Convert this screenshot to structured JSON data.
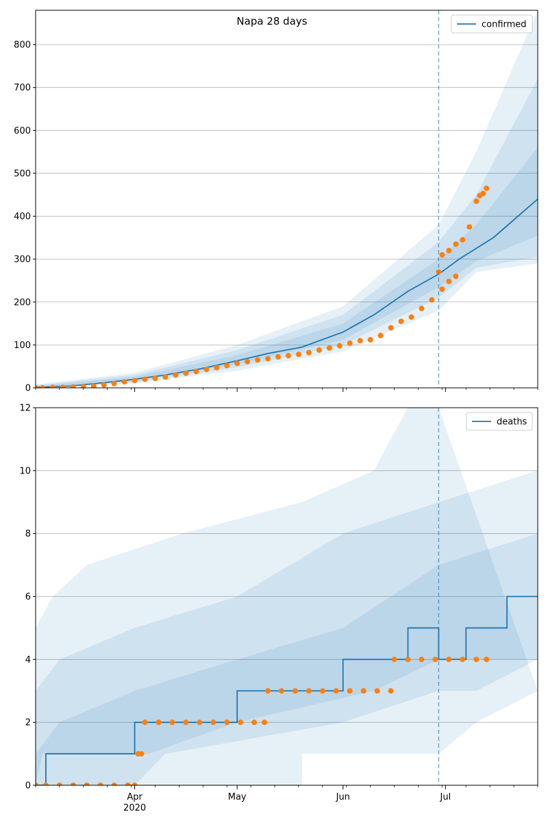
{
  "title": "Napa 28 days",
  "colors": {
    "model": "#1f77b4",
    "observed": "#ff7f0e",
    "grid": "#b0b0b0",
    "band": "#1f77b4"
  },
  "chart_data": [
    {
      "type": "line",
      "legend": "confirmed",
      "legend_position": "top-right",
      "grid": true,
      "x_range": [
        "2020-03-03",
        "2020-07-28"
      ],
      "y_ticks": [
        0,
        100,
        200,
        300,
        400,
        500,
        600,
        700,
        800
      ],
      "ylim": [
        0,
        880
      ],
      "forecast_start": "2020-06-29",
      "model": [
        [
          "2020-03-03",
          1
        ],
        [
          "2020-03-13",
          4
        ],
        [
          "2020-03-23",
          12
        ],
        [
          "2020-04-01",
          20
        ],
        [
          "2020-04-10",
          30
        ],
        [
          "2020-04-20",
          44
        ],
        [
          "2020-05-01",
          63
        ],
        [
          "2020-05-10",
          80
        ],
        [
          "2020-05-20",
          95
        ],
        [
          "2020-06-01",
          130
        ],
        [
          "2020-06-10",
          170
        ],
        [
          "2020-06-20",
          225
        ],
        [
          "2020-06-29",
          265
        ],
        [
          "2020-07-05",
          300
        ],
        [
          "2020-07-15",
          350
        ],
        [
          "2020-07-28",
          440
        ]
      ],
      "bands": [
        {
          "lo": [
            [
              "2020-03-03",
              0
            ],
            [
              "2020-04-01",
              10
            ],
            [
              "2020-05-01",
              40
            ],
            [
              "2020-06-01",
              85
            ],
            [
              "2020-06-29",
              180
            ],
            [
              "2020-07-10",
              270
            ],
            [
              "2020-07-28",
              290
            ]
          ],
          "hi": [
            [
              "2020-03-03",
              8
            ],
            [
              "2020-04-01",
              35
            ],
            [
              "2020-05-01",
              100
            ],
            [
              "2020-06-01",
              190
            ],
            [
              "2020-06-29",
              380
            ],
            [
              "2020-07-10",
              550
            ],
            [
              "2020-07-28",
              880
            ]
          ]
        },
        {
          "lo": [
            [
              "2020-03-03",
              0
            ],
            [
              "2020-04-01",
              13
            ],
            [
              "2020-05-01",
              48
            ],
            [
              "2020-06-01",
              100
            ],
            [
              "2020-06-29",
              210
            ],
            [
              "2020-07-10",
              280
            ],
            [
              "2020-07-28",
              305
            ]
          ],
          "hi": [
            [
              "2020-03-03",
              6
            ],
            [
              "2020-04-01",
              30
            ],
            [
              "2020-05-01",
              88
            ],
            [
              "2020-06-01",
              170
            ],
            [
              "2020-06-29",
              340
            ],
            [
              "2020-07-10",
              450
            ],
            [
              "2020-07-28",
              720
            ]
          ]
        },
        {
          "lo": [
            [
              "2020-03-03",
              0
            ],
            [
              "2020-04-01",
              16
            ],
            [
              "2020-05-01",
              55
            ],
            [
              "2020-06-01",
              112
            ],
            [
              "2020-06-29",
              235
            ],
            [
              "2020-07-10",
              295
            ],
            [
              "2020-07-28",
              355
            ]
          ],
          "hi": [
            [
              "2020-03-03",
              4
            ],
            [
              "2020-04-01",
              26
            ],
            [
              "2020-05-01",
              76
            ],
            [
              "2020-06-01",
              150
            ],
            [
              "2020-06-29",
              300
            ],
            [
              "2020-07-10",
              380
            ],
            [
              "2020-07-28",
              560
            ]
          ]
        }
      ],
      "observed": [
        [
          "2020-03-03",
          0
        ],
        [
          "2020-03-05",
          0
        ],
        [
          "2020-03-08",
          1
        ],
        [
          "2020-03-11",
          1
        ],
        [
          "2020-03-14",
          2
        ],
        [
          "2020-03-17",
          3
        ],
        [
          "2020-03-20",
          4
        ],
        [
          "2020-03-23",
          7
        ],
        [
          "2020-03-26",
          10
        ],
        [
          "2020-03-29",
          14
        ],
        [
          "2020-04-01",
          17
        ],
        [
          "2020-04-04",
          20
        ],
        [
          "2020-04-07",
          22
        ],
        [
          "2020-04-10",
          25
        ],
        [
          "2020-04-13",
          30
        ],
        [
          "2020-04-16",
          34
        ],
        [
          "2020-04-19",
          38
        ],
        [
          "2020-04-22",
          43
        ],
        [
          "2020-04-25",
          47
        ],
        [
          "2020-04-28",
          52
        ],
        [
          "2020-05-01",
          57
        ],
        [
          "2020-05-04",
          61
        ],
        [
          "2020-05-07",
          65
        ],
        [
          "2020-05-10",
          68
        ],
        [
          "2020-05-13",
          72
        ],
        [
          "2020-05-16",
          75
        ],
        [
          "2020-05-19",
          78
        ],
        [
          "2020-05-22",
          82
        ],
        [
          "2020-05-25",
          88
        ],
        [
          "2020-05-28",
          93
        ],
        [
          "2020-05-31",
          98
        ],
        [
          "2020-06-03",
          104
        ],
        [
          "2020-06-06",
          110
        ],
        [
          "2020-06-09",
          112
        ],
        [
          "2020-06-12",
          122
        ],
        [
          "2020-06-15",
          140
        ],
        [
          "2020-06-18",
          155
        ],
        [
          "2020-06-21",
          165
        ],
        [
          "2020-06-24",
          185
        ],
        [
          "2020-06-27",
          205
        ],
        [
          "2020-06-30",
          230
        ],
        [
          "2020-07-02",
          248
        ],
        [
          "2020-07-04",
          260
        ],
        [
          "2020-06-29",
          270
        ],
        [
          "2020-06-30",
          310
        ],
        [
          "2020-07-02",
          320
        ],
        [
          "2020-07-04",
          335
        ],
        [
          "2020-07-06",
          345
        ],
        [
          "2020-07-08",
          375
        ],
        [
          "2020-07-10",
          435
        ],
        [
          "2020-07-11",
          448
        ],
        [
          "2020-07-12",
          453
        ],
        [
          "2020-07-13",
          465
        ]
      ]
    },
    {
      "type": "line",
      "legend": "deaths",
      "legend_position": "top-right",
      "grid": true,
      "x_range": [
        "2020-03-03",
        "2020-07-28"
      ],
      "x_ticks": [
        "Apr\n2020",
        "May",
        "Jun",
        "Jul"
      ],
      "x_tick_dates": [
        "2020-04-01",
        "2020-05-01",
        "2020-06-01",
        "2020-07-01"
      ],
      "y_ticks": [
        0,
        2,
        4,
        6,
        8,
        10,
        12
      ],
      "ylim": [
        0,
        12
      ],
      "forecast_start": "2020-06-29",
      "model": [
        [
          "2020-03-03",
          0
        ],
        [
          "2020-03-06",
          0
        ],
        [
          "2020-03-06",
          1
        ],
        [
          "2020-04-01",
          1
        ],
        [
          "2020-04-01",
          2
        ],
        [
          "2020-05-01",
          2
        ],
        [
          "2020-05-01",
          3
        ],
        [
          "2020-06-01",
          3
        ],
        [
          "2020-06-01",
          4
        ],
        [
          "2020-06-20",
          4
        ],
        [
          "2020-06-20",
          5
        ],
        [
          "2020-06-29",
          5
        ],
        [
          "2020-06-29",
          4
        ],
        [
          "2020-07-07",
          4
        ],
        [
          "2020-07-07",
          5
        ],
        [
          "2020-07-19",
          5
        ],
        [
          "2020-07-19",
          6
        ],
        [
          "2020-07-28",
          6
        ]
      ],
      "bands": [
        {
          "lo": [
            [
              "2020-03-03",
              0
            ],
            [
              "2020-05-20",
              0
            ],
            [
              "2020-05-20",
              1
            ],
            [
              "2020-06-10",
              1
            ],
            [
              "2020-06-29",
              1
            ],
            [
              "2020-07-10",
              2
            ],
            [
              "2020-07-28",
              3
            ]
          ],
          "hi": [
            [
              "2020-03-03",
              5
            ],
            [
              "2020-03-08",
              6
            ],
            [
              "2020-03-18",
              7
            ],
            [
              "2020-04-15",
              8
            ],
            [
              "2020-05-20",
              9
            ],
            [
              "2020-06-10",
              10
            ],
            [
              "2020-06-20",
              12
            ],
            [
              "2020-06-29",
              12
            ]
          ]
        },
        {
          "lo": [
            [
              "2020-03-03",
              0
            ],
            [
              "2020-04-01",
              0
            ],
            [
              "2020-04-10",
              1
            ],
            [
              "2020-06-01",
              2
            ],
            [
              "2020-06-29",
              3
            ],
            [
              "2020-07-10",
              3
            ],
            [
              "2020-07-28",
              4
            ]
          ],
          "hi": [
            [
              "2020-03-03",
              3
            ],
            [
              "2020-03-10",
              4
            ],
            [
              "2020-04-01",
              5
            ],
            [
              "2020-05-01",
              6
            ],
            [
              "2020-06-01",
              8
            ],
            [
              "2020-06-29",
              9
            ],
            [
              "2020-07-28",
              10
            ]
          ]
        },
        {
          "lo": [
            [
              "2020-03-03",
              0
            ],
            [
              "2020-03-05",
              1
            ],
            [
              "2020-04-05",
              1
            ],
            [
              "2020-05-01",
              2
            ],
            [
              "2020-06-10",
              3
            ],
            [
              "2020-06-29",
              4
            ],
            [
              "2020-07-28",
              4
            ]
          ],
          "hi": [
            [
              "2020-03-03",
              1
            ],
            [
              "2020-03-10",
              2
            ],
            [
              "2020-04-01",
              3
            ],
            [
              "2020-05-01",
              4
            ],
            [
              "2020-06-01",
              5
            ],
            [
              "2020-06-29",
              7
            ],
            [
              "2020-07-28",
              8
            ]
          ]
        }
      ],
      "observed": [
        [
          "2020-03-03",
          0
        ],
        [
          "2020-03-06",
          0
        ],
        [
          "2020-03-10",
          0
        ],
        [
          "2020-03-14",
          0
        ],
        [
          "2020-03-18",
          0
        ],
        [
          "2020-03-22",
          0
        ],
        [
          "2020-03-26",
          0
        ],
        [
          "2020-03-30",
          0
        ],
        [
          "2020-04-01",
          0
        ],
        [
          "2020-04-02",
          1
        ],
        [
          "2020-04-03",
          1
        ],
        [
          "2020-04-04",
          2
        ],
        [
          "2020-04-08",
          2
        ],
        [
          "2020-04-12",
          2
        ],
        [
          "2020-04-16",
          2
        ],
        [
          "2020-04-20",
          2
        ],
        [
          "2020-04-24",
          2
        ],
        [
          "2020-04-28",
          2
        ],
        [
          "2020-05-02",
          2
        ],
        [
          "2020-05-06",
          2
        ],
        [
          "2020-05-09",
          2
        ],
        [
          "2020-05-10",
          3
        ],
        [
          "2020-05-14",
          3
        ],
        [
          "2020-05-18",
          3
        ],
        [
          "2020-05-22",
          3
        ],
        [
          "2020-05-26",
          3
        ],
        [
          "2020-05-30",
          3
        ],
        [
          "2020-06-03",
          3
        ],
        [
          "2020-06-07",
          3
        ],
        [
          "2020-06-11",
          3
        ],
        [
          "2020-06-15",
          3
        ],
        [
          "2020-06-16",
          4
        ],
        [
          "2020-06-20",
          4
        ],
        [
          "2020-06-24",
          4
        ],
        [
          "2020-06-28",
          4
        ],
        [
          "2020-07-02",
          4
        ],
        [
          "2020-07-06",
          4
        ],
        [
          "2020-07-10",
          4
        ],
        [
          "2020-07-13",
          4
        ]
      ]
    }
  ]
}
